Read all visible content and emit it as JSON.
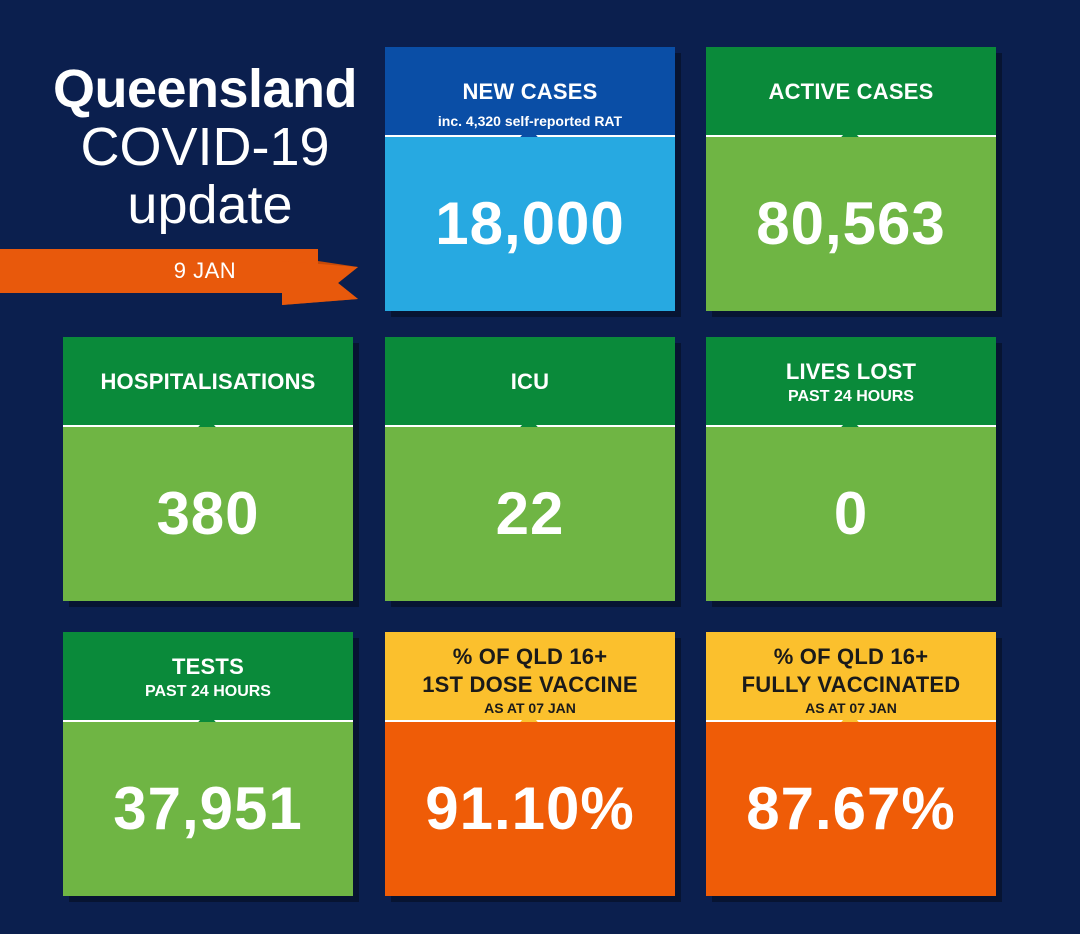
{
  "header": {
    "title_line1": "Queensland",
    "title_line2": "COVID-19",
    "title_line3": "update",
    "date": "9 JAN"
  },
  "colors": {
    "background": "#0b1f4e",
    "ribbon": "#e8590c",
    "blue_head": "#0a4ea6",
    "blue_body": "#27a9e1",
    "green_head": "#0a8a3a",
    "green_body": "#6fb544",
    "yellow_head": "#fbc02d",
    "orange_body": "#ef5c07"
  },
  "tiles": {
    "new_cases": {
      "label": "NEW CASES",
      "sub": "inc. 4,320 self-reported RAT",
      "value": "18,000"
    },
    "active_cases": {
      "label": "ACTIVE CASES",
      "value": "80,563"
    },
    "hospitalisations": {
      "label": "HOSPITALISATIONS",
      "value": "380"
    },
    "icu": {
      "label": "ICU",
      "value": "22"
    },
    "lives_lost": {
      "label": "LIVES LOST",
      "sub": "PAST 24 HOURS",
      "value": "0"
    },
    "tests": {
      "label": "TESTS",
      "sub": "PAST 24 HOURS",
      "value": "37,951"
    },
    "first_dose": {
      "label1": "% OF QLD 16+",
      "label2": "1ST DOSE VACCINE",
      "sub": "AS AT 07 JAN",
      "value": "91.10%"
    },
    "fully_vaccinated": {
      "label1": "% OF QLD 16+",
      "label2": "FULLY VACCINATED",
      "sub": "AS AT 07 JAN",
      "value": "87.67%"
    }
  }
}
